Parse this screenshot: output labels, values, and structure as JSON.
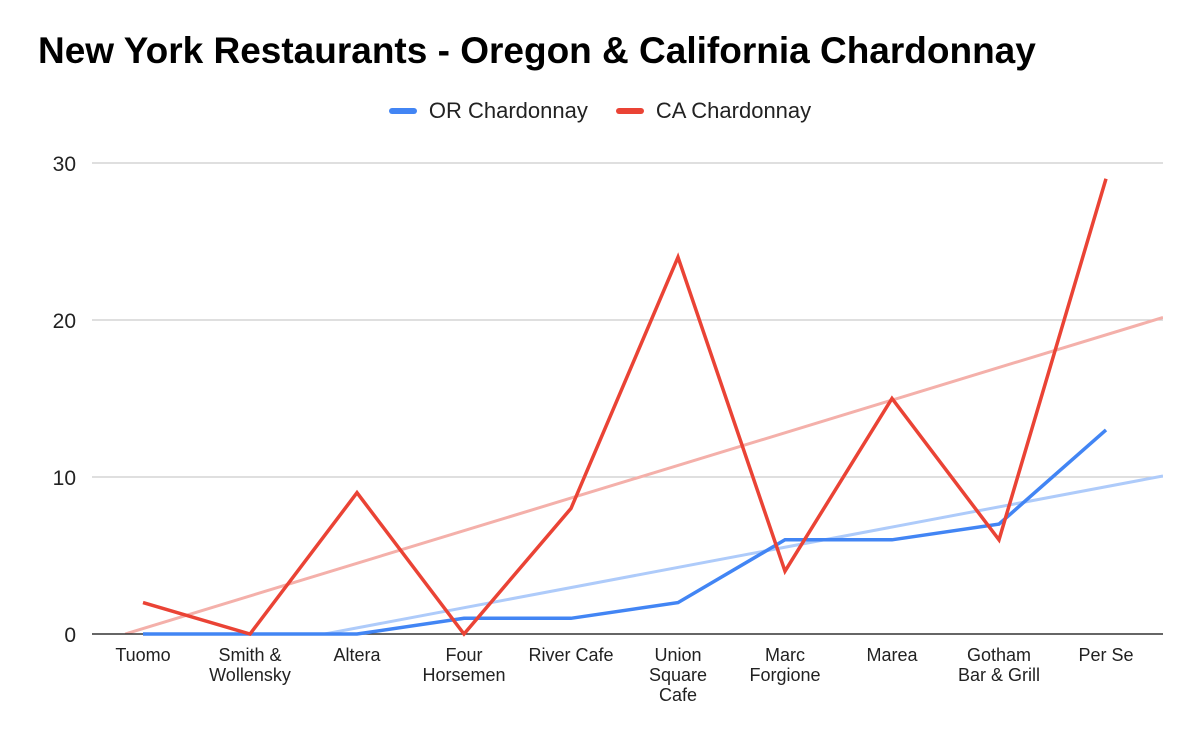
{
  "chart_data": {
    "type": "line",
    "title": "New York Restaurants - Oregon & California Chardonnay",
    "categories": [
      "Tuomo",
      "Smith & Wollensky",
      "Altera",
      "Four Horsemen",
      "River Cafe",
      "Union Square Cafe",
      "Marc Forgione",
      "Marea",
      "Gotham Bar & Grill",
      "Per Se"
    ],
    "category_lines": [
      [
        "Tuomo"
      ],
      [
        "Smith &",
        "Wollensky"
      ],
      [
        "Altera"
      ],
      [
        "Four",
        "Horsemen"
      ],
      [
        "River Cafe"
      ],
      [
        "Union",
        "Square",
        "Cafe"
      ],
      [
        "Marc",
        "Forgione"
      ],
      [
        "Marea"
      ],
      [
        "Gotham",
        "Bar & Grill"
      ],
      [
        "Per Se"
      ]
    ],
    "series": [
      {
        "name": "OR Chardonnay",
        "color": "#4285f4",
        "trend_color": "#aecbfa",
        "values": [
          0,
          0,
          0,
          1,
          1,
          2,
          6,
          6,
          7,
          13
        ]
      },
      {
        "name": "CA Chardonnay",
        "color": "#ea4335",
        "trend_color": "#f4b0aa",
        "values": [
          2,
          0,
          9,
          0,
          8,
          24,
          4,
          15,
          6,
          29
        ]
      }
    ],
    "trendlines": true,
    "ylim": [
      0,
      30
    ],
    "yticks": [
      0,
      10,
      20,
      30
    ],
    "xlabel": "",
    "ylabel": "",
    "grid": true,
    "legend_position": "top"
  }
}
